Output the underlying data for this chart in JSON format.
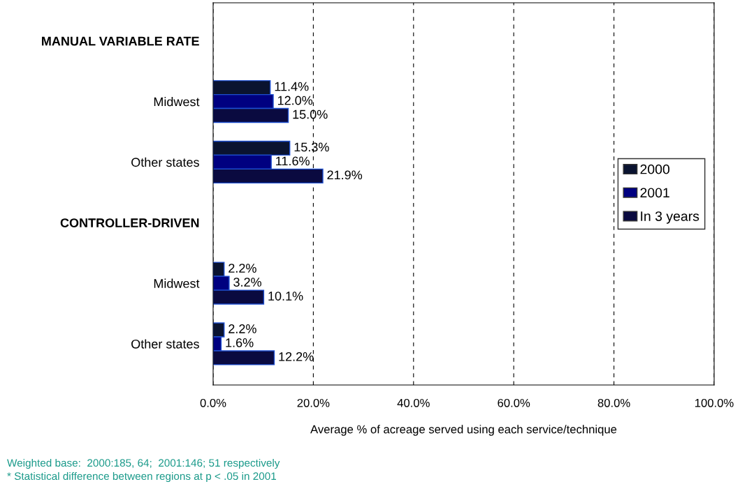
{
  "chart_data": {
    "type": "bar",
    "orientation": "horizontal",
    "xlabel": "Average % of acreage served using each service/technique",
    "categories": [
      "MANUAL VARIABLE RATE",
      "Midwest",
      "Other states",
      "CONTROLLER-DRIVEN",
      "Midwest",
      "Other states"
    ],
    "series": [
      {
        "name": "2000",
        "color": "#0a1330",
        "values": [
          null,
          11.4,
          15.3,
          null,
          2.2,
          2.2
        ],
        "value_labels": [
          null,
          "11.4%",
          "15.3%",
          null,
          "2.2%",
          "2.2%"
        ]
      },
      {
        "name": "2001",
        "color": "#000080",
        "values": [
          null,
          12.0,
          11.6,
          null,
          3.2,
          1.6
        ],
        "value_labels": [
          null,
          "12.0%",
          "11.6%",
          null,
          "3.2%",
          "1.6%"
        ]
      },
      {
        "name": "In 3 years",
        "color": "#0a0a40",
        "values": [
          null,
          15.0,
          21.9,
          null,
          10.1,
          12.2
        ],
        "value_labels": [
          null,
          "15.0%",
          "21.9%",
          null,
          "10.1%",
          "12.2%"
        ]
      }
    ],
    "xlim": [
      0,
      100
    ],
    "xticks": [
      {
        "value": 0,
        "label": "0.0%"
      },
      {
        "value": 20,
        "label": "20.0%"
      },
      {
        "value": 40,
        "label": "40.0%"
      },
      {
        "value": 60,
        "label": "60.0%"
      },
      {
        "value": 80,
        "label": "80.0%"
      },
      {
        "value": 100,
        "label": "100.0%"
      }
    ],
    "grid": "x",
    "legend": "right",
    "annotations": [
      "Weighted base:  2000:185, 64;  2001:146; 51 respectively",
      "* Statistical difference between regions at p < .05 in 2001"
    ]
  }
}
